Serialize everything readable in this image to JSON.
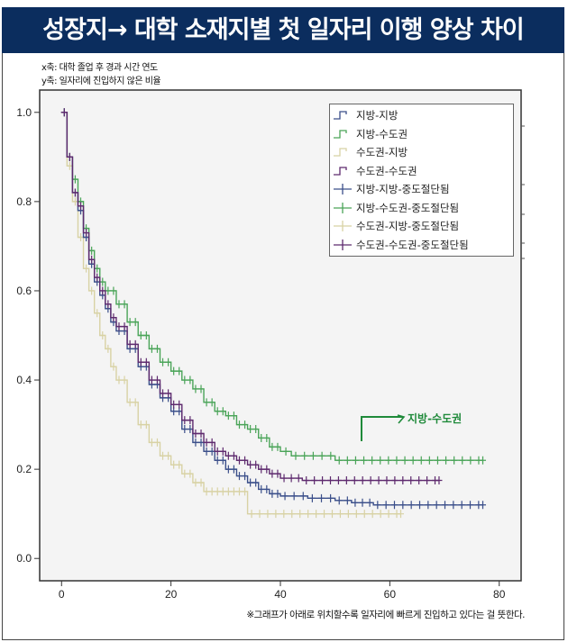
{
  "title": "성장지→ 대학 소재지별 첫 일자리 이행 양상 차이",
  "notes": [
    "x축: 대학 졸업 후 경과 시간 연도",
    "y축: 일자리에 진입하지 않은 비율"
  ],
  "footnote": "※그래프가 아래로 위치할수록 일자리에 빠르게 진입하고 있다는 걸 뜻한다.",
  "annotation": "지방-수도권",
  "colors": {
    "title_bg": "#0b2d5e",
    "plot_bg": "#f4f4f4",
    "annotation": "#1f8a3a"
  },
  "chart_data": {
    "type": "line",
    "subtype": "kaplan-meier step",
    "xlim": [
      -4,
      84
    ],
    "ylim": [
      -0.05,
      1.05
    ],
    "xticks": [
      "0",
      "20",
      "40",
      "60",
      "80"
    ],
    "yticks": [
      "0.0",
      "0.2",
      "0.4",
      "0.6",
      "0.8",
      "1.0"
    ],
    "grid": false,
    "legend_placement": "top-right",
    "legend": [
      "지방-지방",
      "지방-수도권",
      "수도권-지방",
      "수도권-수도권",
      "지방-지방-중도절단됨",
      "지방-수도권-중도절단됨",
      "수도권-지방-중도절단됨",
      "수도권-수도권-중도절단됨"
    ],
    "series": [
      {
        "name": "지방-지방",
        "color": "#3b4f8a",
        "points": [
          [
            0,
            1
          ],
          [
            1,
            0.9
          ],
          [
            2,
            0.82
          ],
          [
            3,
            0.78
          ],
          [
            4,
            0.72
          ],
          [
            5,
            0.66
          ],
          [
            6,
            0.62
          ],
          [
            7,
            0.59
          ],
          [
            8,
            0.56
          ],
          [
            9,
            0.53
          ],
          [
            10,
            0.51
          ],
          [
            12,
            0.47
          ],
          [
            14,
            0.43
          ],
          [
            16,
            0.39
          ],
          [
            18,
            0.36
          ],
          [
            20,
            0.33
          ],
          [
            22,
            0.29
          ],
          [
            24,
            0.26
          ],
          [
            26,
            0.24
          ],
          [
            28,
            0.22
          ],
          [
            30,
            0.2
          ],
          [
            32,
            0.185
          ],
          [
            34,
            0.17
          ],
          [
            36,
            0.155
          ],
          [
            38,
            0.145
          ],
          [
            40,
            0.14
          ],
          [
            45,
            0.135
          ],
          [
            50,
            0.13
          ],
          [
            53,
            0.125
          ],
          [
            57,
            0.12
          ],
          [
            77,
            0.12
          ]
        ]
      },
      {
        "name": "지방-수도권",
        "color": "#4aa458",
        "points": [
          [
            0,
            1
          ],
          [
            1,
            0.9
          ],
          [
            2,
            0.85
          ],
          [
            3,
            0.8
          ],
          [
            4,
            0.74
          ],
          [
            5,
            0.69
          ],
          [
            6,
            0.65
          ],
          [
            7,
            0.62
          ],
          [
            8,
            0.6
          ],
          [
            10,
            0.57
          ],
          [
            12,
            0.53
          ],
          [
            14,
            0.5
          ],
          [
            16,
            0.47
          ],
          [
            18,
            0.44
          ],
          [
            20,
            0.42
          ],
          [
            22,
            0.4
          ],
          [
            24,
            0.38
          ],
          [
            26,
            0.35
          ],
          [
            28,
            0.33
          ],
          [
            30,
            0.32
          ],
          [
            32,
            0.3
          ],
          [
            34,
            0.29
          ],
          [
            36,
            0.27
          ],
          [
            38,
            0.25
          ],
          [
            40,
            0.24
          ],
          [
            42,
            0.23
          ],
          [
            50,
            0.22
          ],
          [
            77,
            0.22
          ]
        ]
      },
      {
        "name": "수도권-지방",
        "color": "#d8d2a4",
        "points": [
          [
            0,
            1
          ],
          [
            1,
            0.88
          ],
          [
            2,
            0.8
          ],
          [
            3,
            0.72
          ],
          [
            4,
            0.65
          ],
          [
            5,
            0.6
          ],
          [
            6,
            0.55
          ],
          [
            7,
            0.5
          ],
          [
            8,
            0.47
          ],
          [
            9,
            0.43
          ],
          [
            10,
            0.4
          ],
          [
            12,
            0.35
          ],
          [
            14,
            0.3
          ],
          [
            16,
            0.26
          ],
          [
            18,
            0.23
          ],
          [
            20,
            0.21
          ],
          [
            22,
            0.19
          ],
          [
            24,
            0.17
          ],
          [
            26,
            0.15
          ],
          [
            34,
            0.1
          ],
          [
            62,
            0.1
          ]
        ]
      },
      {
        "name": "수도권-수도권",
        "color": "#5e2a6e",
        "points": [
          [
            0,
            1
          ],
          [
            1,
            0.9
          ],
          [
            2,
            0.82
          ],
          [
            3,
            0.79
          ],
          [
            4,
            0.73
          ],
          [
            5,
            0.67
          ],
          [
            6,
            0.63
          ],
          [
            7,
            0.6
          ],
          [
            8,
            0.57
          ],
          [
            9,
            0.54
          ],
          [
            10,
            0.52
          ],
          [
            12,
            0.48
          ],
          [
            14,
            0.44
          ],
          [
            16,
            0.4
          ],
          [
            18,
            0.37
          ],
          [
            20,
            0.345
          ],
          [
            22,
            0.31
          ],
          [
            24,
            0.28
          ],
          [
            26,
            0.26
          ],
          [
            28,
            0.24
          ],
          [
            30,
            0.23
          ],
          [
            32,
            0.22
          ],
          [
            34,
            0.21
          ],
          [
            36,
            0.2
          ],
          [
            38,
            0.19
          ],
          [
            40,
            0.18
          ],
          [
            44,
            0.175
          ],
          [
            69,
            0.175
          ]
        ]
      }
    ]
  }
}
